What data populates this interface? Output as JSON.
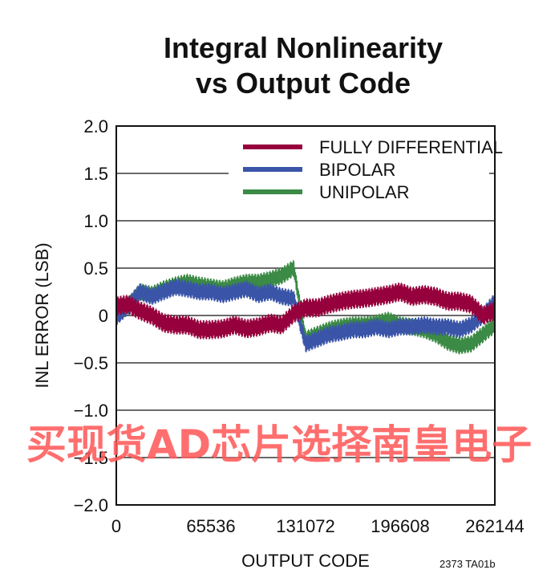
{
  "title_line1": "Integral Nonlinearity",
  "title_line2": "vs Output Code",
  "figure_code": "2373 TA01b",
  "watermark": "买现货AD芯片选择南皇电子",
  "chart_data": {
    "type": "line",
    "xlabel": "OUTPUT CODE",
    "ylabel": "INL ERROR (LSB)",
    "xlim": [
      0,
      262144
    ],
    "ylim": [
      -2.0,
      2.0
    ],
    "x_ticks": [
      0,
      65536,
      131072,
      196608,
      262144
    ],
    "x_tick_labels": [
      "0",
      "65536",
      "131072",
      "196608",
      "262144"
    ],
    "y_ticks": [
      2.0,
      1.5,
      1.0,
      0.5,
      0,
      -0.5,
      -1.0,
      -1.5,
      -2.0
    ],
    "y_tick_labels": [
      "2.0",
      "1.5",
      "1.0",
      "0.5",
      "0",
      "−0.5",
      "−1.0",
      "−1.5",
      "−2.0"
    ],
    "grid": "horizontal",
    "legend_position": "top-right",
    "x": [
      0,
      8192,
      16384,
      24576,
      32768,
      40960,
      49152,
      57344,
      65536,
      73728,
      81920,
      90112,
      98304,
      106496,
      114688,
      122880,
      131072,
      139264,
      147456,
      155648,
      163840,
      172032,
      180224,
      188416,
      196608,
      204800,
      212992,
      221184,
      229376,
      237568,
      245760,
      253952,
      262144
    ],
    "series": [
      {
        "name": "FULLY DIFFERENTIAL",
        "color": "#96003c",
        "band": 0.1,
        "values": [
          0.1,
          0.12,
          0.05,
          0.0,
          -0.08,
          -0.1,
          -0.1,
          -0.15,
          -0.15,
          -0.14,
          -0.1,
          -0.14,
          -0.12,
          -0.08,
          -0.1,
          0.02,
          0.08,
          0.08,
          0.12,
          0.15,
          0.17,
          0.18,
          0.2,
          0.22,
          0.25,
          0.2,
          0.22,
          0.2,
          0.15,
          0.15,
          0.12,
          0.0,
          0.05
        ]
      },
      {
        "name": "BIPOLAR",
        "color": "#3a55a8",
        "band": 0.09,
        "values": [
          -0.02,
          0.1,
          0.25,
          0.2,
          0.25,
          0.3,
          0.28,
          0.25,
          0.25,
          0.22,
          0.25,
          0.28,
          0.22,
          0.25,
          0.2,
          0.18,
          -0.3,
          -0.25,
          -0.2,
          -0.18,
          -0.15,
          -0.15,
          -0.12,
          -0.15,
          -0.12,
          -0.12,
          -0.1,
          -0.12,
          -0.12,
          -0.15,
          -0.1,
          0.0,
          0.15
        ]
      },
      {
        "name": "UNIPOLAR",
        "color": "#3b8a45",
        "band": 0.09,
        "values": [
          0.0,
          0.1,
          0.25,
          0.22,
          0.28,
          0.32,
          0.35,
          0.32,
          0.3,
          0.28,
          0.32,
          0.35,
          0.35,
          0.38,
          0.42,
          0.5,
          -0.25,
          -0.2,
          -0.15,
          -0.12,
          -0.1,
          -0.1,
          -0.08,
          -0.05,
          -0.1,
          -0.12,
          -0.15,
          -0.2,
          -0.28,
          -0.32,
          -0.3,
          -0.2,
          -0.1
        ]
      }
    ]
  }
}
